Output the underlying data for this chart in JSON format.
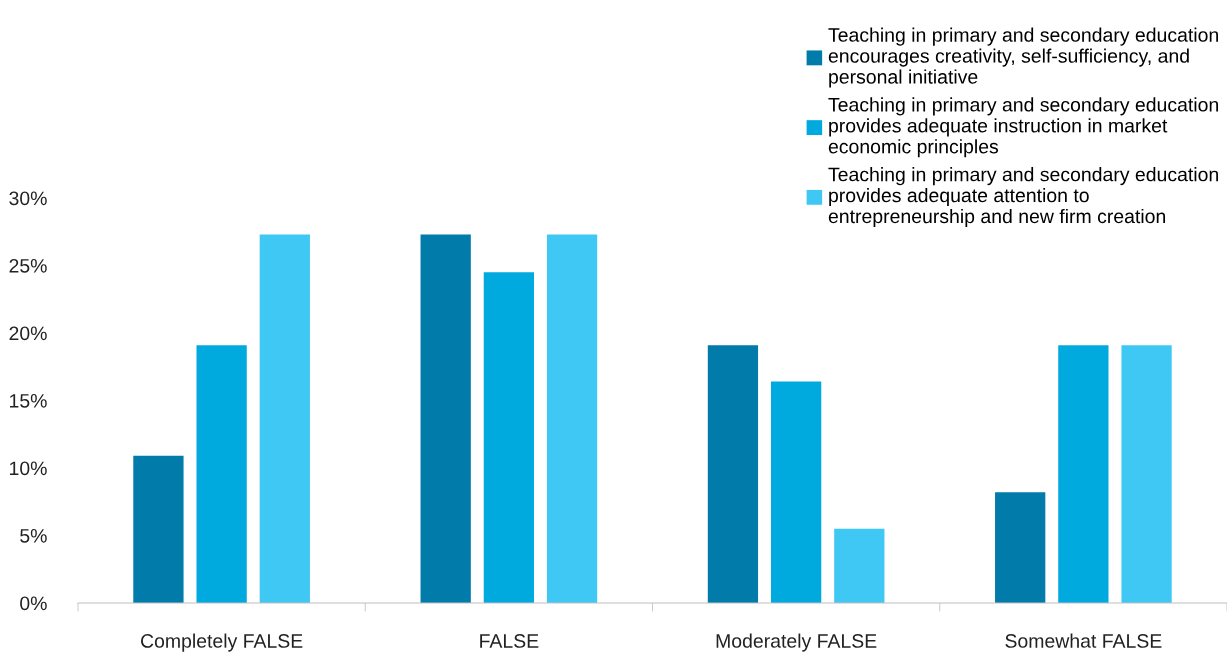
{
  "chart_data": {
    "type": "bar",
    "categories": [
      "Completely FALSE",
      "FALSE",
      "Moderately FALSE",
      "Somewhat FALSE"
    ],
    "series": [
      {
        "name": "Teaching in primary and secondary education\nencourages creativity, self-sufficiency, and\npersonal initiative",
        "color": "#007baa",
        "values": [
          10.9,
          27.3,
          19.1,
          8.2
        ]
      },
      {
        "name": "Teaching in primary and secondary education\nprovides adequate instruction in market\neconomic principles",
        "color": "#00a9de",
        "values": [
          19.1,
          24.5,
          16.4,
          19.1
        ]
      },
      {
        "name": "Teaching in primary and secondary education\nprovides adequate attention to\nentrepreneurship and new firm creation",
        "color": "#40c8f4",
        "values": [
          27.3,
          27.3,
          5.5,
          19.1
        ]
      }
    ],
    "ylim": [
      0,
      30
    ],
    "yticks": [
      {
        "value": 0,
        "label": "0%"
      },
      {
        "value": 5,
        "label": "5%"
      },
      {
        "value": 10,
        "label": "10%"
      },
      {
        "value": 15,
        "label": "15%"
      },
      {
        "value": 20,
        "label": "20%"
      },
      {
        "value": 25,
        "label": "25%"
      },
      {
        "value": 30,
        "label": "30%"
      }
    ],
    "grid": false,
    "legend": "top right"
  }
}
